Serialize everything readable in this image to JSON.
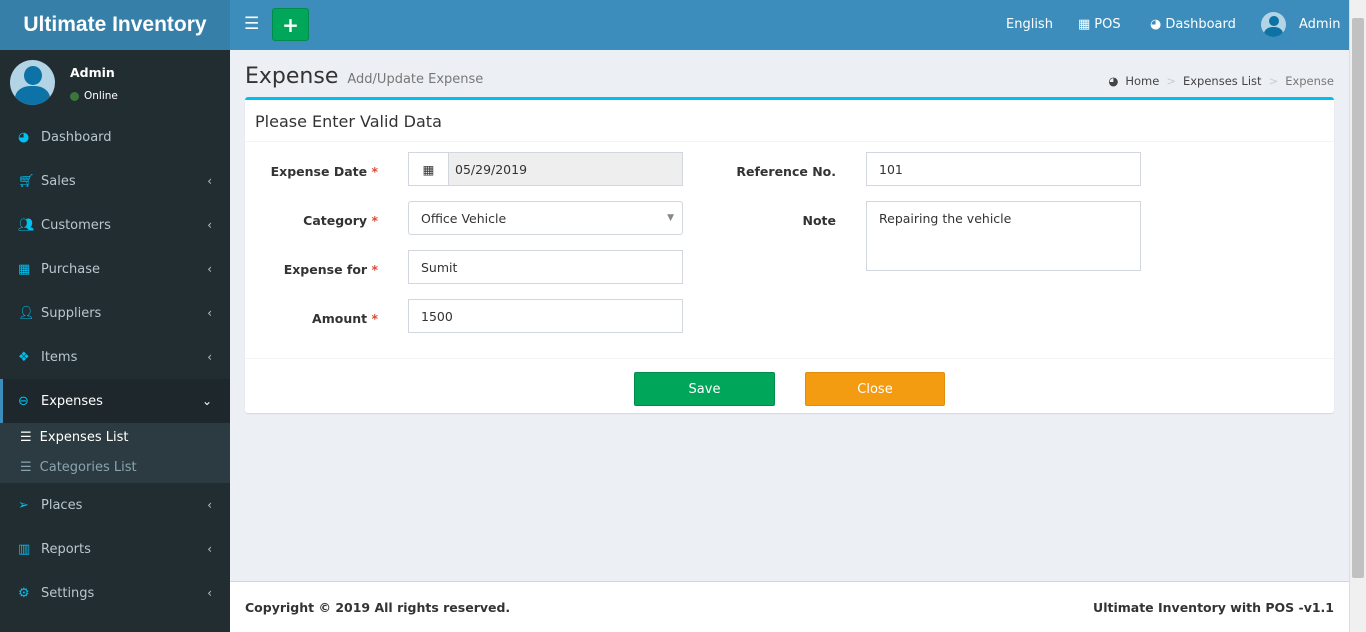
{
  "app": {
    "title": "Ultimate Inventory"
  },
  "topbar": {
    "language": "English",
    "pos": "POS",
    "dashboard": "Dashboard",
    "user": "Admin"
  },
  "user": {
    "name": "Admin",
    "status": "Online"
  },
  "sidebar": {
    "items": [
      {
        "label": "Dashboard",
        "icon": "dashboard-icon"
      },
      {
        "label": "Sales",
        "icon": "cart-icon"
      },
      {
        "label": "Customers",
        "icon": "users-icon"
      },
      {
        "label": "Purchase",
        "icon": "grid-icon"
      },
      {
        "label": "Suppliers",
        "icon": "user-plus-icon"
      },
      {
        "label": "Items",
        "icon": "cubes-icon"
      },
      {
        "label": "Expenses",
        "icon": "minus-circle-icon"
      },
      {
        "label": "Places",
        "icon": "paper-plane-icon"
      },
      {
        "label": "Reports",
        "icon": "bar-chart-icon"
      },
      {
        "label": "Settings",
        "icon": "gears-icon"
      }
    ],
    "submenu": [
      {
        "label": "Expenses List"
      },
      {
        "label": "Categories List"
      }
    ]
  },
  "page": {
    "title": "Expense",
    "subtitle": "Add/Update Expense"
  },
  "breadcrumb": [
    "Home",
    "Expenses List",
    "Expense"
  ],
  "form": {
    "heading": "Please Enter Valid Data",
    "expense_date": {
      "label": "Expense Date",
      "value": "05/29/2019"
    },
    "category": {
      "label": "Category",
      "value": "Office Vehicle"
    },
    "expense_for": {
      "label": "Expense for",
      "value": "Sumit"
    },
    "amount": {
      "label": "Amount",
      "value": "1500"
    },
    "reference": {
      "label": "Reference No.",
      "value": "101"
    },
    "note": {
      "label": "Note",
      "value": "Repairing the vehicle"
    },
    "required_mark": "*",
    "save": "Save",
    "close": "Close"
  },
  "footer": {
    "copyright": "Copyright © 2019 All rights reserved.",
    "version": "Ultimate Inventory with POS -v1.1"
  },
  "colors": {
    "header": "#3c8dbc",
    "logo": "#367fa9",
    "sidebar": "#222d32",
    "save": "#00a65a",
    "close": "#f39c12",
    "box_accent": "#00c0ef"
  }
}
